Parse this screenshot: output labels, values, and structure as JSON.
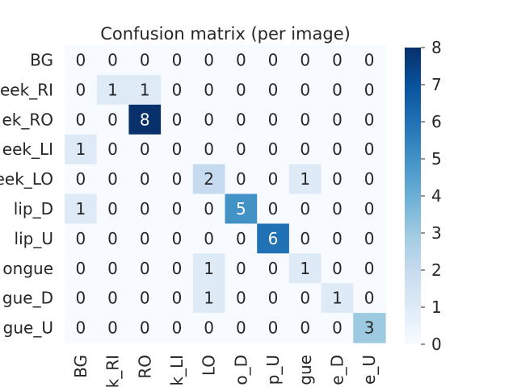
{
  "chart_data": {
    "type": "heatmap",
    "title": "Confusion matrix (per image)",
    "xlabel": "",
    "ylabel": "",
    "row_labels": [
      "BG",
      "eek_RI",
      "ek_RO",
      "eek_LI",
      "eek_LO",
      "lip_D",
      "lip_U",
      "ongue",
      "gue_D",
      "gue_U"
    ],
    "col_labels": [
      "BG",
      "k_RI",
      "RO",
      "k_LI",
      "LO",
      "o_D",
      "p_U",
      "gue",
      "e_D",
      "e_U"
    ],
    "values": [
      [
        0,
        0,
        0,
        0,
        0,
        0,
        0,
        0,
        0,
        0
      ],
      [
        0,
        1,
        1,
        0,
        0,
        0,
        0,
        0,
        0,
        0
      ],
      [
        0,
        0,
        8,
        0,
        0,
        0,
        0,
        0,
        0,
        0
      ],
      [
        1,
        0,
        0,
        0,
        0,
        0,
        0,
        0,
        0,
        0
      ],
      [
        0,
        0,
        0,
        0,
        2,
        0,
        0,
        1,
        0,
        0
      ],
      [
        1,
        0,
        0,
        0,
        0,
        5,
        0,
        0,
        0,
        0
      ],
      [
        0,
        0,
        0,
        0,
        0,
        0,
        6,
        0,
        0,
        0
      ],
      [
        0,
        0,
        0,
        0,
        1,
        0,
        0,
        1,
        0,
        0
      ],
      [
        0,
        0,
        0,
        0,
        1,
        0,
        0,
        0,
        1,
        0
      ],
      [
        0,
        0,
        0,
        0,
        0,
        0,
        0,
        0,
        0,
        3
      ]
    ],
    "colorbar": {
      "min": 0,
      "max": 8,
      "ticks": [
        "0",
        "1",
        "2",
        "3",
        "4",
        "5",
        "6",
        "7",
        "8"
      ],
      "colormap": "Blues"
    },
    "grid": false
  }
}
